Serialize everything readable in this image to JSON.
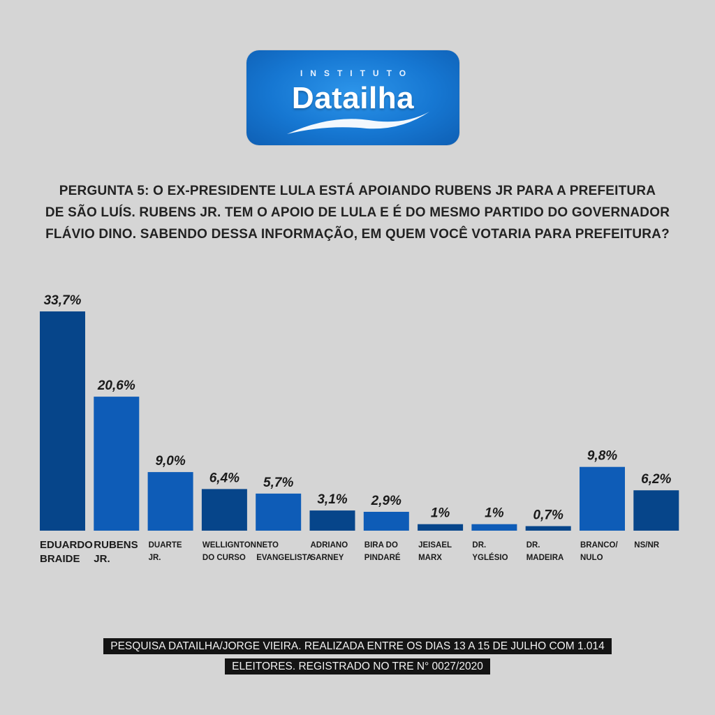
{
  "logo": {
    "top_text": "INSTITUTO",
    "main_text": "Datailha",
    "bg_color": "#1677d2"
  },
  "question": {
    "lines": [
      "PERGUNTA 5: O EX-PRESIDENTE LULA ESTÁ APOIANDO RUBENS JR PARA A PREFEITURA",
      "DE SÃO LUÍS. RUBENS JR. TEM O APOIO DE LULA E É DO MESMO PARTIDO DO GOVERNADOR",
      "FLÁVIO DINO. SABENDO DESSA INFORMAÇÃO, EM QUEM VOCÊ VOTARIA PARA PREFEITURA?"
    ]
  },
  "chart_data": {
    "type": "bar",
    "categories": [
      [
        "EDUARDO",
        "BRAIDE"
      ],
      [
        "RUBENS",
        "JR."
      ],
      [
        "DUARTE",
        "JR."
      ],
      [
        "WELLIGNTON",
        "DO CURSO"
      ],
      [
        "NETO",
        "EVANGELISTA"
      ],
      [
        "ADRIANO",
        "SARNEY"
      ],
      [
        "BIRA DO",
        "PINDARÉ"
      ],
      [
        "JEISAEL",
        "MARX"
      ],
      [
        "DR.",
        "YGLÉSIO"
      ],
      [
        "DR.",
        "MADEIRA"
      ],
      [
        "BRANCO/",
        "NULO"
      ],
      [
        "NS/NR"
      ]
    ],
    "values": [
      33.7,
      20.6,
      9.0,
      6.4,
      5.7,
      3.1,
      2.9,
      1,
      1,
      0.7,
      9.8,
      6.2
    ],
    "value_labels": [
      "33,7%",
      "20,6%",
      "9,0%",
      "6,4%",
      "5,7%",
      "3,1%",
      "2,9%",
      "1%",
      "1%",
      "0,7%",
      "9,8%",
      "6,2%"
    ],
    "bar_colors": [
      "#06458a",
      "#0e5cb7",
      "#0e5cb7",
      "#06458a",
      "#0e5cb7",
      "#06458a",
      "#0e5cb7",
      "#06458a",
      "#0e5cb7",
      "#06458a",
      "#0e5cb7",
      "#06458a"
    ],
    "title": "",
    "xlabel": "",
    "ylabel": "",
    "ylim": [
      0,
      33.7
    ],
    "grid": false,
    "legend": "none"
  },
  "footer": {
    "text": "PESQUISA DATAILHA/JORGE VIEIRA. REALIZADA ENTRE OS DIAS 13 A 15 DE JULHO COM 1.014 ELEITORES. REGISTRADO NO TRE N° 0027/2020"
  }
}
